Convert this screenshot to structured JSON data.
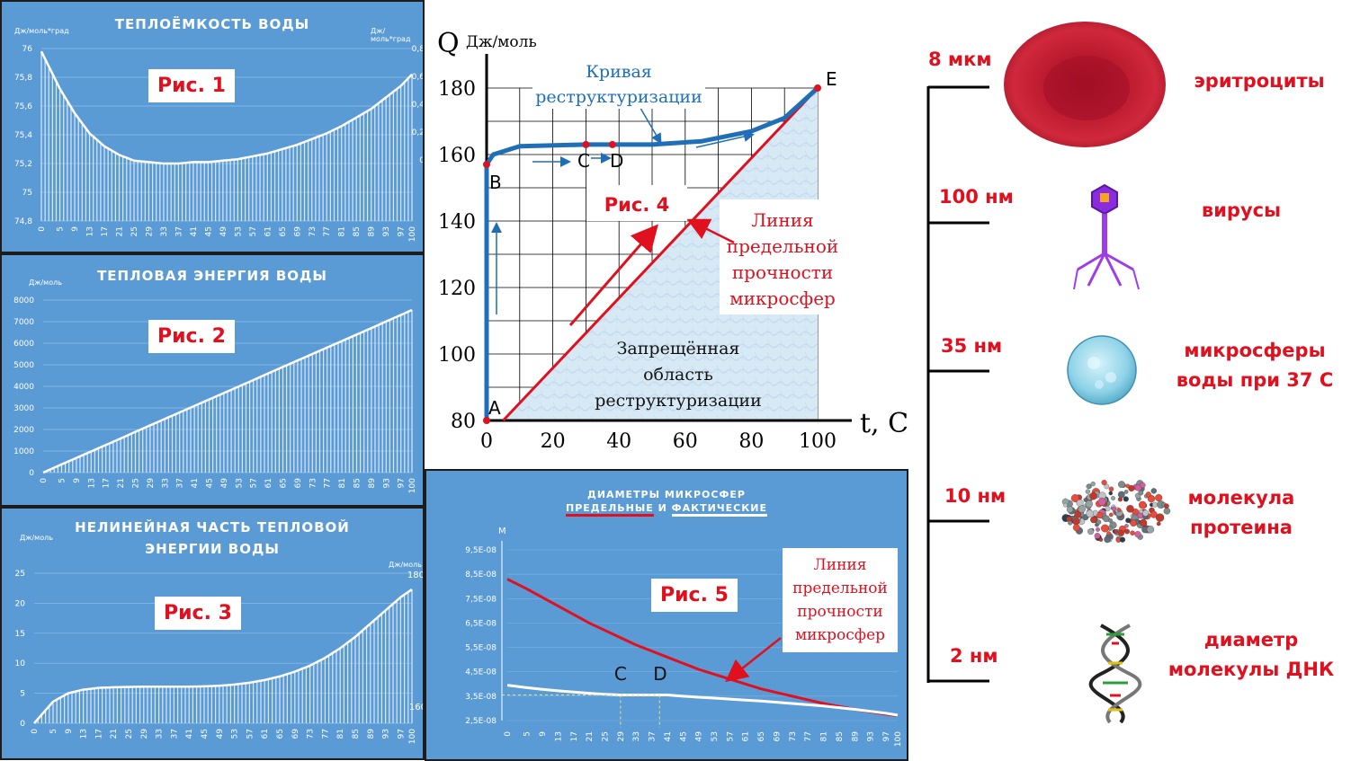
{
  "fig1": {
    "title": "ТЕПЛОЁМКОСТЬ ВОДЫ",
    "label": "Рис. 1",
    "left_unit": "Дж/моль*град",
    "right_unit": "Дж/моль*град",
    "left_ticks": [
      "76",
      "75,8",
      "75,6",
      "75,4",
      "75,2",
      "75",
      "74,8"
    ],
    "right_ticks": [
      "0,8",
      "0,6",
      "0,4",
      "0,2",
      "0"
    ],
    "x_ticks": [
      "0",
      "5",
      "9",
      "13",
      "17",
      "21",
      "25",
      "29",
      "33",
      "37",
      "41",
      "45",
      "49",
      "53",
      "57",
      "61",
      "65",
      "69",
      "73",
      "77",
      "81",
      "85",
      "89",
      "93",
      "97",
      "100"
    ]
  },
  "fig2": {
    "title": "ТЕПЛОВАЯ ЭНЕРГИЯ ВОДЫ",
    "label": "Рис. 2",
    "unit": "Дж/моль",
    "y_ticks": [
      "8000",
      "7000",
      "6000",
      "5000",
      "4000",
      "3000",
      "2000",
      "1000",
      "0"
    ],
    "x_ticks": [
      "0",
      "5",
      "9",
      "13",
      "17",
      "21",
      "25",
      "29",
      "33",
      "37",
      "41",
      "45",
      "49",
      "53",
      "57",
      "61",
      "65",
      "69",
      "73",
      "77",
      "81",
      "85",
      "89",
      "93",
      "97",
      "100"
    ]
  },
  "fig3": {
    "title_line1": "НЕЛИНЕЙНАЯ ЧАСТЬ ТЕПЛОВОЙ",
    "title_line2": "ЭНЕРГИИ ВОДЫ",
    "label": "Рис. 3",
    "left_unit": "Дж/моль",
    "right_unit": "Дж/моль",
    "left_ticks": [
      "25",
      "20",
      "15",
      "10",
      "5",
      "0"
    ],
    "right_top": "180",
    "right_bottom": "160",
    "x_ticks": [
      "0",
      "5",
      "9",
      "13",
      "17",
      "21",
      "25",
      "29",
      "33",
      "37",
      "41",
      "45",
      "49",
      "53",
      "57",
      "61",
      "65",
      "69",
      "73",
      "77",
      "81",
      "85",
      "89",
      "93",
      "97",
      "100"
    ]
  },
  "fig4": {
    "q_label": "Q",
    "unit": "Дж/моль",
    "t_label": "t, C",
    "y_ticks": [
      "180",
      "160",
      "140",
      "120",
      "100",
      "80"
    ],
    "x_ticks": [
      "0",
      "20",
      "40",
      "60",
      "80",
      "100"
    ],
    "curve_label_1": "Кривая",
    "curve_label_2": "реструктуризации",
    "label": "Рис. 4",
    "limit_1": "Линия",
    "limit_2": "предельной",
    "limit_3": "прочности",
    "limit_4": "микросфер",
    "forbid_1": "Запрещённая",
    "forbid_2": "область",
    "forbid_3": "реструктуризации",
    "pt_a": "A",
    "pt_b": "B",
    "pt_c": "C",
    "pt_d": "D",
    "pt_e": "E",
    "colors": {
      "curve": "#1f6fb8",
      "limit": "#e0101f"
    }
  },
  "fig5": {
    "title_1": "ДИАМЕТРЫ МИКРОСФЕР",
    "title_2a": "ПРЕДЕЛЬНЫЕ",
    "title_2b": "И",
    "title_2c": "ФАКТИЧЕСКИЕ",
    "label": "Рис. 5",
    "unit": "М",
    "y_ticks": [
      "9,5E-08",
      "8,5E-08",
      "7,5E-08",
      "6,5E-08",
      "5,5E-08",
      "4,5E-08",
      "3,5E-08",
      "2,5E-08"
    ],
    "x_ticks": [
      "0",
      "5",
      "9",
      "13",
      "17",
      "21",
      "25",
      "29",
      "33",
      "37",
      "41",
      "45",
      "49",
      "53",
      "57",
      "61",
      "65",
      "69",
      "73",
      "77",
      "81",
      "85",
      "89",
      "93",
      "97",
      "100"
    ],
    "pt_c": "C",
    "pt_d": "D",
    "limit_1": "Линия",
    "limit_2": "предельной",
    "limit_3": "прочности",
    "limit_4": "микросфер"
  },
  "scale": {
    "sizes": [
      "8 мкм",
      "100 нм",
      "35 нм",
      "10 нм",
      "2 нм"
    ],
    "obj_1": "эритроциты",
    "obj_2": "вирусы",
    "obj_3_line1": "микросферы",
    "obj_3_line2": "воды при 37 С",
    "obj_4_line1": "молекула",
    "obj_4_line2": "протеина",
    "obj_5_line1": "диаметр",
    "obj_5_line2": "молекулы ДНК"
  },
  "chart_data": [
    {
      "type": "bar",
      "title": "ТЕПЛОЁМКОСТЬ ВОДЫ",
      "ylabel": "Дж/моль*град",
      "ylim": [
        74.8,
        76
      ],
      "x": [
        0,
        5,
        9,
        13,
        17,
        21,
        25,
        29,
        33,
        37,
        41,
        45,
        49,
        53,
        57,
        61,
        65,
        69,
        73,
        77,
        81,
        85,
        89,
        93,
        97,
        100
      ],
      "values": [
        75.98,
        75.72,
        75.55,
        75.41,
        75.32,
        75.26,
        75.22,
        75.21,
        75.2,
        75.2,
        75.21,
        75.21,
        75.22,
        75.23,
        75.25,
        75.27,
        75.3,
        75.33,
        75.37,
        75.41,
        75.46,
        75.52,
        75.58,
        75.66,
        75.74,
        75.82
      ]
    },
    {
      "type": "bar",
      "title": "ТЕПЛОВАЯ ЭНЕРГИЯ ВОДЫ",
      "ylabel": "Дж/моль",
      "ylim": [
        0,
        8000
      ],
      "x": [
        0,
        5,
        9,
        13,
        17,
        21,
        25,
        29,
        33,
        37,
        41,
        45,
        49,
        53,
        57,
        61,
        65,
        69,
        73,
        77,
        81,
        85,
        89,
        93,
        97,
        100
      ],
      "values": [
        0,
        380,
        680,
        980,
        1280,
        1580,
        1890,
        2190,
        2490,
        2790,
        3090,
        3390,
        3690,
        3990,
        4290,
        4600,
        4900,
        5200,
        5500,
        5800,
        6100,
        6400,
        6700,
        7010,
        7310,
        7540
      ]
    },
    {
      "type": "bar",
      "title": "НЕЛИНЕЙНАЯ ЧАСТЬ ТЕПЛОВОЙ ЭНЕРГИИ ВОДЫ",
      "ylabel": "Дж/моль",
      "ylim": [
        0,
        25
      ],
      "x": [
        0,
        5,
        9,
        13,
        17,
        21,
        25,
        29,
        33,
        37,
        41,
        45,
        49,
        53,
        57,
        61,
        65,
        69,
        73,
        77,
        81,
        85,
        89,
        93,
        97,
        100
      ],
      "values": [
        0,
        3.6,
        5.0,
        5.6,
        5.9,
        6.0,
        6.05,
        6.1,
        6.1,
        6.1,
        6.1,
        6.15,
        6.25,
        6.45,
        6.75,
        7.2,
        7.8,
        8.6,
        9.6,
        10.9,
        12.5,
        14.4,
        16.6,
        18.8,
        21.0,
        22.3
      ]
    },
    {
      "type": "line",
      "xlabel": "t, C",
      "ylabel": "Q Дж/моль",
      "xlim": [
        0,
        100
      ],
      "ylim": [
        80,
        180
      ],
      "series": [
        {
          "name": "Кривая реструктуризации",
          "x": [
            0,
            0,
            2,
            10,
            30,
            50,
            65,
            80,
            90,
            100
          ],
          "values": [
            80,
            157,
            160,
            162.5,
            163,
            163,
            164,
            167,
            171,
            180
          ]
        },
        {
          "name": "Линия предельной прочности микросфер",
          "x": [
            5,
            100
          ],
          "values": [
            80,
            180
          ]
        }
      ],
      "points": [
        {
          "label": "A",
          "x": 0,
          "y": 80
        },
        {
          "label": "B",
          "x": 0,
          "y": 157
        },
        {
          "label": "C",
          "x": 30,
          "y": 163
        },
        {
          "label": "D",
          "x": 38,
          "y": 163
        },
        {
          "label": "E",
          "x": 100,
          "y": 180
        }
      ]
    },
    {
      "type": "line",
      "title": "ДИАМЕТРЫ МИКРОСФЕР ПРЕДЕЛЬНЫЕ И ФАКТИЧЕСКИЕ",
      "ylabel": "М",
      "ylim": [
        2.5e-08,
        9.5e-08
      ],
      "x": [
        0,
        5,
        9,
        13,
        17,
        21,
        25,
        29,
        33,
        37,
        41,
        45,
        49,
        53,
        57,
        61,
        65,
        69,
        73,
        77,
        81,
        85,
        89,
        93,
        97,
        100
      ],
      "series": [
        {
          "name": "ПРЕДЕЛЬНЫЕ",
          "values": [
            8.3e-08,
            7.9e-08,
            7.55e-08,
            7.2e-08,
            6.85e-08,
            6.5e-08,
            6.2e-08,
            5.9e-08,
            5.6e-08,
            5.35e-08,
            5.1e-08,
            4.85e-08,
            4.6e-08,
            4.4e-08,
            4.2e-08,
            4e-08,
            3.8e-08,
            3.65e-08,
            3.5e-08,
            3.35e-08,
            3.2e-08,
            3.08e-08,
            2.96e-08,
            2.86e-08,
            2.76e-08,
            2.7e-08
          ]
        },
        {
          "name": "ФАКТИЧЕСКИЕ",
          "values": [
            3.95e-08,
            3.85e-08,
            3.78e-08,
            3.72e-08,
            3.67e-08,
            3.62e-08,
            3.58e-08,
            3.55e-08,
            3.55e-08,
            3.55e-08,
            3.55e-08,
            3.5e-08,
            3.46e-08,
            3.42e-08,
            3.38e-08,
            3.34e-08,
            3.3e-08,
            3.25e-08,
            3.2e-08,
            3.15e-08,
            3.1e-08,
            3.03e-08,
            2.96e-08,
            2.88e-08,
            2.8e-08,
            2.72e-08
          ]
        }
      ],
      "points": [
        {
          "label": "C",
          "x": 29
        },
        {
          "label": "D",
          "x": 39
        }
      ]
    }
  ]
}
